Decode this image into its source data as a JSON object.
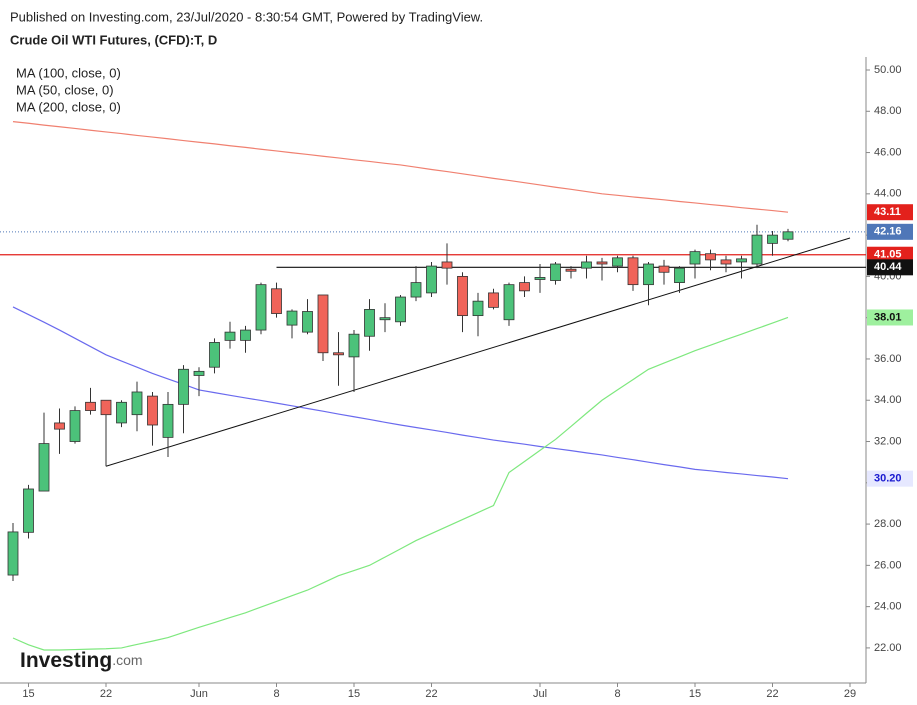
{
  "chart_data": {
    "type": "candlestick",
    "source": "Published on Investing.com, 23/Jul/2020 - 8:30:54 GMT, Powered by TradingView.",
    "title": "Crude Oil WTI Futures, (CFD):T, D",
    "categories": [
      null,
      "15",
      null,
      null,
      null,
      null,
      "22",
      null,
      null,
      null,
      null,
      null,
      "Jun",
      null,
      null,
      null,
      null,
      "8",
      null,
      null,
      null,
      null,
      "15",
      null,
      null,
      null,
      null,
      "22",
      null,
      null,
      null,
      null,
      null,
      null,
      "Jul",
      null,
      null,
      null,
      null,
      "8",
      null,
      null,
      null,
      null,
      "15",
      null,
      null,
      null,
      null,
      "22",
      null,
      null,
      null,
      null,
      "29"
    ],
    "open": [
      25.53,
      27.6,
      29.6,
      32.9,
      32.0,
      33.9,
      34.0,
      32.9,
      33.3,
      34.2,
      32.2,
      33.8,
      35.2,
      35.6,
      36.9,
      36.9,
      37.4,
      39.4,
      37.64,
      37.3,
      39.1,
      36.3,
      36.1,
      37.1,
      37.9,
      37.8,
      39.0,
      39.2,
      40.7,
      40.0,
      38.1,
      39.2,
      37.9,
      39.7,
      39.85,
      39.8,
      40.35,
      40.4,
      40.7,
      40.5,
      40.9,
      39.6,
      40.5,
      39.7,
      40.6,
      41.1,
      40.8,
      40.7,
      40.6,
      41.6,
      41.8,
      null,
      null,
      null,
      null
    ],
    "high": [
      28.05,
      29.9,
      33.4,
      33.6,
      33.7,
      34.6,
      34.0,
      34.0,
      34.9,
      34.4,
      34.4,
      35.7,
      35.6,
      37.0,
      37.8,
      37.6,
      39.7,
      39.7,
      38.4,
      38.9,
      39.1,
      37.3,
      37.4,
      38.9,
      38.7,
      39.1,
      40.5,
      40.7,
      41.6,
      40.2,
      39.2,
      39.4,
      39.7,
      40.0,
      40.6,
      40.7,
      40.5,
      41.0,
      40.9,
      41.0,
      41.0,
      40.7,
      40.8,
      40.5,
      41.3,
      41.3,
      41.0,
      41.0,
      42.5,
      42.2,
      42.3,
      null,
      null,
      null,
      null
    ],
    "low": [
      25.24,
      27.3,
      29.6,
      31.4,
      31.9,
      33.3,
      30.8,
      32.7,
      32.5,
      31.8,
      31.25,
      32.4,
      34.2,
      35.3,
      36.5,
      36.3,
      37.2,
      38.0,
      37.0,
      37.2,
      35.9,
      34.7,
      34.4,
      36.4,
      37.3,
      37.6,
      38.8,
      39.0,
      39.6,
      37.3,
      37.1,
      38.4,
      37.6,
      39.0,
      39.2,
      39.6,
      39.9,
      39.9,
      39.8,
      40.2,
      39.3,
      38.6,
      39.6,
      39.2,
      39.9,
      40.3,
      40.2,
      39.9,
      40.4,
      41.0,
      41.7,
      null,
      null,
      null,
      null
    ],
    "close": [
      27.62,
      29.7,
      31.9,
      32.6,
      33.5,
      33.5,
      33.3,
      33.9,
      34.4,
      32.8,
      33.8,
      35.5,
      35.4,
      36.8,
      37.3,
      37.4,
      39.6,
      38.2,
      38.32,
      38.3,
      36.3,
      36.2,
      37.2,
      38.4,
      38.0,
      39.0,
      39.7,
      40.5,
      40.4,
      38.1,
      38.8,
      38.5,
      39.6,
      39.3,
      39.95,
      40.6,
      40.25,
      40.7,
      40.6,
      40.9,
      39.6,
      40.6,
      40.2,
      40.4,
      41.2,
      40.8,
      40.6,
      40.85,
      42.0,
      42.0,
      42.16,
      null,
      null,
      null,
      null
    ],
    "up_color": "#4cc27a",
    "down_color": "#f0645a",
    "series": [
      {
        "name": "MA (100, close, 0)",
        "color": "#f08070",
        "values": [
          47.5,
          47.42,
          47.33,
          47.25,
          47.17,
          47.08,
          47.0,
          46.92,
          46.83,
          46.75,
          46.67,
          46.58,
          46.5,
          46.42,
          46.33,
          46.25,
          46.16,
          46.08,
          45.99,
          45.91,
          45.82,
          45.74,
          45.65,
          45.57,
          45.48,
          45.4,
          45.29,
          45.18,
          45.08,
          44.97,
          44.86,
          44.75,
          44.65,
          44.54,
          44.43,
          44.32,
          44.22,
          44.11,
          44.0,
          43.93,
          43.85,
          43.78,
          43.71,
          43.63,
          43.56,
          43.48,
          43.41,
          43.33,
          43.26,
          43.19,
          43.11,
          null,
          null,
          null,
          null
        ]
      },
      {
        "name": "MA (50, close, 0)",
        "color": "#6a6aee",
        "values": [
          38.52,
          38.15,
          37.78,
          37.4,
          37.0,
          36.6,
          36.2,
          35.9,
          35.6,
          35.3,
          35.03,
          34.77,
          34.5,
          34.37,
          34.24,
          34.11,
          33.99,
          33.86,
          33.73,
          33.6,
          33.47,
          33.33,
          33.2,
          33.07,
          32.93,
          32.8,
          32.68,
          32.56,
          32.44,
          32.31,
          32.19,
          32.07,
          31.97,
          31.87,
          31.76,
          31.66,
          31.56,
          31.45,
          31.35,
          31.23,
          31.12,
          31.0,
          30.88,
          30.77,
          30.65,
          30.58,
          30.5,
          30.43,
          30.35,
          30.28,
          30.2,
          null,
          null,
          null,
          null
        ]
      },
      {
        "name": "MA (200, close, 0)",
        "color": "#7ee87e",
        "values": [
          22.48,
          22.15,
          21.9,
          21.9,
          21.92,
          21.94,
          21.96,
          22.0,
          22.17,
          22.33,
          22.5,
          22.75,
          23.0,
          23.23,
          23.47,
          23.7,
          23.98,
          24.25,
          24.53,
          24.8,
          25.15,
          25.5,
          25.75,
          26.0,
          26.4,
          26.8,
          27.2,
          27.54,
          27.88,
          28.22,
          28.56,
          28.9,
          30.5,
          31.03,
          31.57,
          32.1,
          32.73,
          33.37,
          34.0,
          34.5,
          35.0,
          35.5,
          35.8,
          36.1,
          36.4,
          36.67,
          36.94,
          37.2,
          37.47,
          37.74,
          38.01,
          null,
          null,
          null,
          null
        ]
      }
    ],
    "markers": [
      {
        "value": 43.11,
        "label": "43.11",
        "color": "#e3211c",
        "text_color": "#ffffff",
        "line": "none"
      },
      {
        "value": 42.16,
        "label": "42.16",
        "color": "#4f77b8",
        "text_color": "#ffffff",
        "line": "dotted"
      },
      {
        "value": 41.05,
        "label": "41.05",
        "color": "#e3211c",
        "text_color": "#ffffff",
        "line": "solid"
      },
      {
        "value": 40.44,
        "label": "40.44",
        "color": "#111111",
        "text_color": "#ffffff",
        "line": "solid"
      },
      {
        "value": 38.01,
        "label": "38.01",
        "color": "#9ef09e",
        "text_color": "#111111",
        "line": "none"
      },
      {
        "value": 30.2,
        "label": "30.20",
        "color": "#e6e8ff",
        "text_color": "#1a1ad0",
        "line": "none"
      }
    ],
    "trendline": {
      "from": 30.8,
      "to": 41.86,
      "color": "#111111"
    },
    "ylim": [
      20.3,
      50.63
    ],
    "yticks": [
      {
        "value": 22,
        "label": "22.00"
      },
      {
        "value": 24,
        "label": "24.00"
      },
      {
        "value": 26,
        "label": "26.00"
      },
      {
        "value": 28,
        "label": "28.00"
      },
      {
        "value": 30,
        "label": "30.00"
      },
      {
        "value": 32,
        "label": "32.00"
      },
      {
        "value": 34,
        "label": "34.00"
      },
      {
        "value": 36,
        "label": "36.00"
      },
      {
        "value": 38,
        "label": "38.00"
      },
      {
        "value": 40,
        "label": "40.00"
      },
      {
        "value": 42,
        "label": "42.00"
      },
      {
        "value": 44,
        "label": "44.00"
      },
      {
        "value": 46,
        "label": "46.00"
      },
      {
        "value": 48,
        "label": "48.00"
      },
      {
        "value": 50,
        "label": "50.00"
      }
    ],
    "logo": {
      "name": "Investing",
      "suffix": ".com"
    }
  }
}
